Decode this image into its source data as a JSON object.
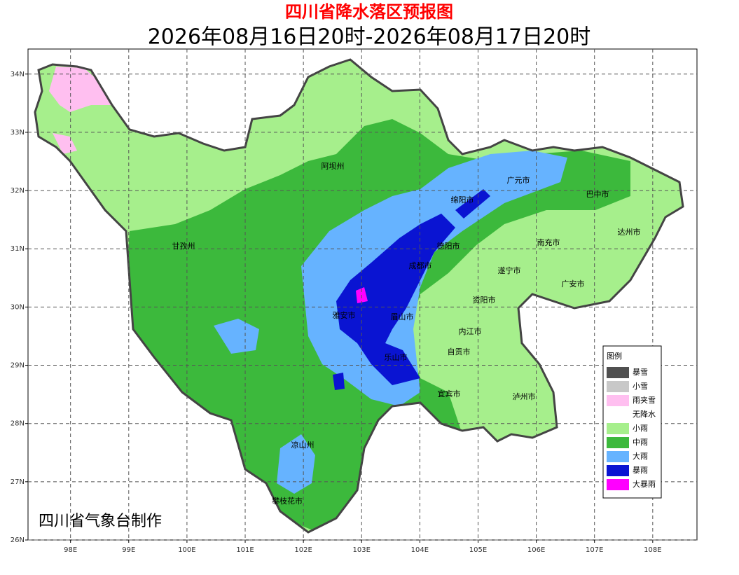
{
  "header": {
    "title": "四川省降水落区预报图",
    "subtitle": "2026年08月16日20时-2026年08月17日20时"
  },
  "map": {
    "xlim": [
      97.27,
      108.76
    ],
    "ylim": [
      26,
      34.43
    ],
    "xticks": [
      {
        "value": 98,
        "label": "98E"
      },
      {
        "value": 99,
        "label": "99E"
      },
      {
        "value": 100,
        "label": "100E"
      },
      {
        "value": 101,
        "label": "101E"
      },
      {
        "value": 102,
        "label": "102E"
      },
      {
        "value": 103,
        "label": "103E"
      },
      {
        "value": 104,
        "label": "104E"
      },
      {
        "value": 105,
        "label": "105E"
      },
      {
        "value": 106,
        "label": "106E"
      },
      {
        "value": 107,
        "label": "107E"
      },
      {
        "value": 108,
        "label": "108E"
      }
    ],
    "yticks": [
      {
        "value": 26,
        "label": "26N"
      },
      {
        "value": 27,
        "label": "27N"
      },
      {
        "value": 28,
        "label": "28N"
      },
      {
        "value": 29,
        "label": "29N"
      },
      {
        "value": 30,
        "label": "30N"
      },
      {
        "value": 31,
        "label": "31N"
      },
      {
        "value": 32,
        "label": "32N"
      },
      {
        "value": 33,
        "label": "33N"
      },
      {
        "value": 34,
        "label": "34N"
      }
    ],
    "grid": true,
    "cities": [
      "阿坝州",
      "广元市",
      "巴中市",
      "绵阳市",
      "达州市",
      "甘孜州",
      "德阳市",
      "南充市",
      "成都市",
      "遂宁市",
      "广安市",
      "资阳市",
      "雅安市",
      "眉山市",
      "内江市",
      "自贡市",
      "乐山市",
      "宜宾市",
      "泸州市",
      "凉山州",
      "攀枝花市"
    ]
  },
  "legend": {
    "title": "图例",
    "items": [
      {
        "label": "暴雪",
        "color": "#505050"
      },
      {
        "label": "小雪",
        "color": "#c8c8c8"
      },
      {
        "label": "雨夹雪",
        "color": "#ffbff0"
      },
      {
        "label": "无降水",
        "color": "#ffffff"
      },
      {
        "label": "小雨",
        "color": "#a6ef8c"
      },
      {
        "label": "中雨",
        "color": "#3cb93c"
      },
      {
        "label": "大雨",
        "color": "#66b3ff"
      },
      {
        "label": "暴雨",
        "color": "#0a14d2"
      },
      {
        "label": "大暴雨",
        "color": "#ff00ff"
      }
    ]
  },
  "footer": {
    "credit": "四川省气象台制作"
  }
}
